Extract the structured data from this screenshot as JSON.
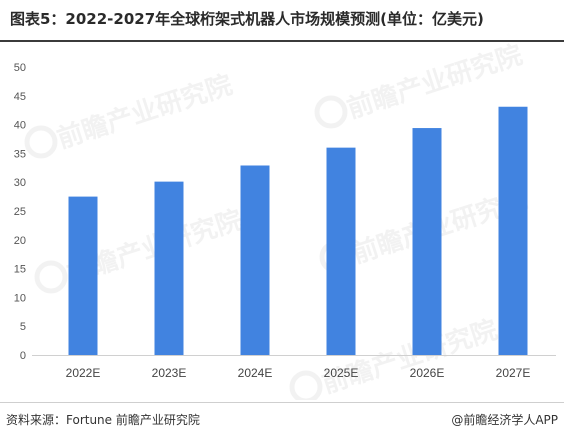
{
  "header": {
    "title": "图表5：2022-2027年全球桁架式机器人市场规模预测(单位：亿美元)"
  },
  "chart_data": {
    "type": "bar",
    "title": "图表5：2022-2027年全球桁架式机器人市场规模预测(单位：亿美元)",
    "xlabel": "",
    "ylabel": "",
    "categories": [
      "2022E",
      "2023E",
      "2024E",
      "2025E",
      "2026E",
      "2027E"
    ],
    "values": [
      27.5,
      30.1,
      32.9,
      36.0,
      39.4,
      43.1
    ],
    "ylim": [
      0,
      50
    ],
    "yticks": [
      0,
      5,
      10,
      15,
      20,
      25,
      30,
      35,
      40,
      45,
      50
    ],
    "grid": false,
    "bar_color": "#4183e0"
  },
  "watermark": {
    "text": "前瞻产业研究院"
  },
  "footer": {
    "source": "资料来源：Fortune 前瞻产业研究院",
    "credit": "@前瞻经济学人APP"
  }
}
